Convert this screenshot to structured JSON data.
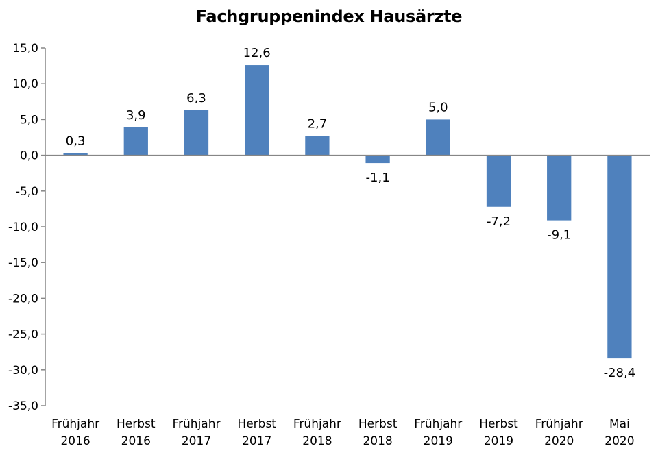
{
  "chart_data": {
    "type": "bar",
    "title": "Fachgruppenindex Hausärzte",
    "categories": [
      [
        "Frühjahr",
        "2016"
      ],
      [
        "Herbst",
        "2016"
      ],
      [
        "Frühjahr",
        "2017"
      ],
      [
        "Herbst",
        "2017"
      ],
      [
        "Frühjahr",
        "2018"
      ],
      [
        "Herbst",
        "2018"
      ],
      [
        "Frühjahr",
        "2019"
      ],
      [
        "Herbst",
        "2019"
      ],
      [
        "Frühjahr",
        "2020"
      ],
      [
        "Mai",
        "2020"
      ]
    ],
    "values": [
      0.3,
      3.9,
      6.3,
      12.6,
      2.7,
      -1.1,
      5.0,
      -7.2,
      -9.1,
      -28.4
    ],
    "data_labels": [
      "0,3",
      "3,9",
      "6,3",
      "12,6",
      "2,7",
      "-1,1",
      "5,0",
      "-7,2",
      "-9,1",
      "-28,4"
    ],
    "ylim": [
      -35,
      15
    ],
    "yticks": [
      15,
      10,
      5,
      0,
      -5,
      -10,
      -15,
      -20,
      -25,
      -30,
      -35
    ],
    "ytick_labels": [
      "15,0",
      "10,0",
      "5,0",
      "0,0",
      "-5,0",
      "-10,0",
      "-15,0",
      "-20,0",
      "-25,0",
      "-30,0",
      "-35,0"
    ],
    "xlabel": "",
    "ylabel": "",
    "grid": false,
    "legend": "none",
    "bar_color": "#4f81bd",
    "axis_color": "#868686"
  }
}
